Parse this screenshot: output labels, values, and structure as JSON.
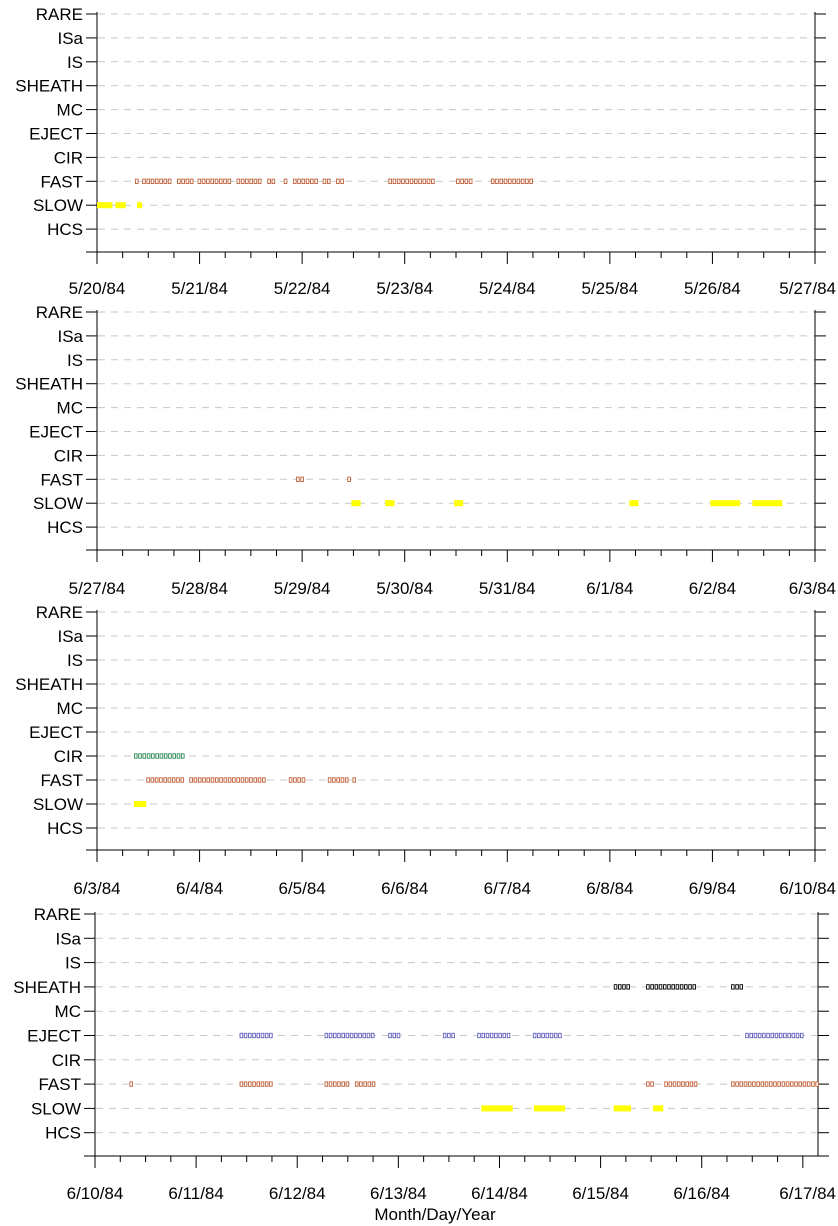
{
  "chart_data": {
    "type": "scatter",
    "xlabel": "Month/Day/Year",
    "categories": [
      "RARE",
      "ISa",
      "IS",
      "SHEATH",
      "MC",
      "EJECT",
      "CIR",
      "FAST",
      "SLOW",
      "HCS"
    ],
    "colors": {
      "FAST": "#c0603a",
      "SLOW": "#ffff00",
      "CIR": "#2e8b57",
      "EJECT": "#6060c0",
      "SHEATH": "#000000"
    },
    "panels": [
      {
        "ticks": [
          "5/20/84",
          "5/21/84",
          "5/22/84",
          "5/23/84",
          "5/24/84",
          "5/25/84",
          "5/26/84",
          "5/27/84"
        ],
        "xlim": [
          0,
          7
        ],
        "segments": [
          {
            "cat": "FAST",
            "style": "box",
            "start": 0.37,
            "end": 0.42
          },
          {
            "cat": "FAST",
            "style": "box",
            "start": 0.44,
            "end": 0.74
          },
          {
            "cat": "FAST",
            "style": "box",
            "start": 0.78,
            "end": 0.96
          },
          {
            "cat": "FAST",
            "style": "box",
            "start": 0.98,
            "end": 1.32
          },
          {
            "cat": "FAST",
            "style": "box",
            "start": 1.36,
            "end": 1.62
          },
          {
            "cat": "FAST",
            "style": "box",
            "start": 1.66,
            "end": 1.74
          },
          {
            "cat": "FAST",
            "style": "box",
            "start": 1.82,
            "end": 1.86
          },
          {
            "cat": "FAST",
            "style": "box",
            "start": 1.91,
            "end": 2.16
          },
          {
            "cat": "FAST",
            "style": "box",
            "start": 2.2,
            "end": 2.28
          },
          {
            "cat": "FAST",
            "style": "box",
            "start": 2.33,
            "end": 2.42
          },
          {
            "cat": "FAST",
            "style": "box",
            "start": 2.84,
            "end": 3.3
          },
          {
            "cat": "FAST",
            "style": "box",
            "start": 3.5,
            "end": 3.67
          },
          {
            "cat": "FAST",
            "style": "box",
            "start": 3.84,
            "end": 4.26
          },
          {
            "cat": "SLOW",
            "style": "fill",
            "start": 0.0,
            "end": 0.15
          },
          {
            "cat": "SLOW",
            "style": "fill",
            "start": 0.18,
            "end": 0.28
          },
          {
            "cat": "SLOW",
            "style": "fill",
            "start": 0.39,
            "end": 0.44
          }
        ]
      },
      {
        "ticks": [
          "5/27/84",
          "5/28/84",
          "5/29/84",
          "5/30/84",
          "5/31/84",
          "6/1/84",
          "6/2/84",
          "6/3/84"
        ],
        "xlim": [
          0,
          7
        ],
        "segments": [
          {
            "cat": "FAST",
            "style": "box",
            "start": 1.94,
            "end": 2.03
          },
          {
            "cat": "FAST",
            "style": "box",
            "start": 2.44,
            "end": 2.48
          },
          {
            "cat": "SLOW",
            "style": "fill",
            "start": 2.48,
            "end": 2.57
          },
          {
            "cat": "SLOW",
            "style": "fill",
            "start": 2.81,
            "end": 2.9
          },
          {
            "cat": "SLOW",
            "style": "fill",
            "start": 3.48,
            "end": 3.57
          },
          {
            "cat": "SLOW",
            "style": "fill",
            "start": 5.19,
            "end": 5.28
          },
          {
            "cat": "SLOW",
            "style": "fill",
            "start": 5.98,
            "end": 6.27
          },
          {
            "cat": "SLOW",
            "style": "fill",
            "start": 6.39,
            "end": 6.68
          }
        ]
      },
      {
        "ticks": [
          "6/3/84",
          "6/4/84",
          "6/5/84",
          "6/6/84",
          "6/7/84",
          "6/8/84",
          "6/9/84",
          "6/10/84"
        ],
        "xlim": [
          0,
          7
        ],
        "segments": [
          {
            "cat": "CIR",
            "style": "box",
            "start": 0.36,
            "end": 0.85
          },
          {
            "cat": "FAST",
            "style": "box",
            "start": 0.48,
            "end": 0.85
          },
          {
            "cat": "FAST",
            "style": "box",
            "start": 0.9,
            "end": 1.64
          },
          {
            "cat": "FAST",
            "style": "box",
            "start": 1.87,
            "end": 2.03
          },
          {
            "cat": "FAST",
            "style": "box",
            "start": 2.25,
            "end": 2.45
          },
          {
            "cat": "FAST",
            "style": "box",
            "start": 2.49,
            "end": 2.53
          },
          {
            "cat": "SLOW",
            "style": "fill",
            "start": 0.36,
            "end": 0.48
          }
        ]
      },
      {
        "ticks": [
          "6/10/84",
          "6/11/84",
          "6/12/84",
          "6/13/84",
          "6/14/84",
          "6/15/84",
          "6/16/84",
          "6/17/84"
        ],
        "xlim": [
          0,
          7.15
        ],
        "segments": [
          {
            "cat": "SHEATH",
            "style": "box",
            "start": 5.13,
            "end": 5.3
          },
          {
            "cat": "SHEATH",
            "style": "box",
            "start": 5.45,
            "end": 5.97
          },
          {
            "cat": "SHEATH",
            "style": "box",
            "start": 6.29,
            "end": 6.43
          },
          {
            "cat": "EJECT",
            "style": "box",
            "start": 1.43,
            "end": 1.77
          },
          {
            "cat": "EJECT",
            "style": "box",
            "start": 2.27,
            "end": 2.78
          },
          {
            "cat": "EJECT",
            "style": "box",
            "start": 2.9,
            "end": 3.03
          },
          {
            "cat": "EJECT",
            "style": "box",
            "start": 3.44,
            "end": 3.58
          },
          {
            "cat": "EJECT",
            "style": "box",
            "start": 3.78,
            "end": 4.12
          },
          {
            "cat": "EJECT",
            "style": "box",
            "start": 4.33,
            "end": 4.63
          },
          {
            "cat": "EJECT",
            "style": "box",
            "start": 6.43,
            "end": 7.03
          },
          {
            "cat": "FAST",
            "style": "box",
            "start": 0.34,
            "end": 0.38
          },
          {
            "cat": "FAST",
            "style": "box",
            "start": 1.43,
            "end": 1.77
          },
          {
            "cat": "FAST",
            "style": "box",
            "start": 2.27,
            "end": 2.53
          },
          {
            "cat": "FAST",
            "style": "box",
            "start": 2.57,
            "end": 2.78
          },
          {
            "cat": "FAST",
            "style": "box",
            "start": 5.45,
            "end": 5.54
          },
          {
            "cat": "FAST",
            "style": "box",
            "start": 5.63,
            "end": 5.97
          },
          {
            "cat": "FAST",
            "style": "box",
            "start": 6.29,
            "end": 7.15
          },
          {
            "cat": "SLOW",
            "style": "fill",
            "start": 3.82,
            "end": 4.13
          },
          {
            "cat": "SLOW",
            "style": "fill",
            "start": 4.34,
            "end": 4.65
          },
          {
            "cat": "SLOW",
            "style": "fill",
            "start": 5.13,
            "end": 5.3
          },
          {
            "cat": "SLOW",
            "style": "fill",
            "start": 5.52,
            "end": 5.62
          }
        ]
      }
    ]
  }
}
